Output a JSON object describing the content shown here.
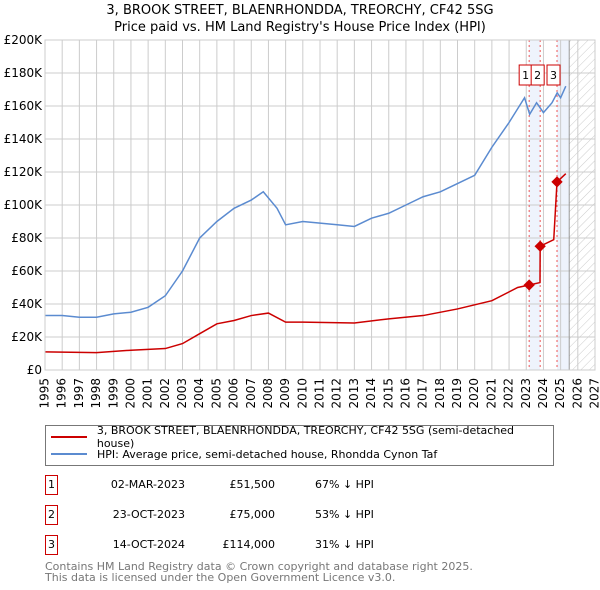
{
  "chart_data": {
    "type": "line",
    "title": "3, BROOK STREET, BLAENRHONDDA, TREORCHY, CF42 5SG",
    "subtitle": "Price paid vs. HM Land Registry's House Price Index (HPI)",
    "xlim": [
      1995,
      2027
    ],
    "ylim": [
      0,
      200000
    ],
    "x_ticks": [
      "1995",
      "1996",
      "1997",
      "1998",
      "1999",
      "2000",
      "2001",
      "2002",
      "2003",
      "2004",
      "2005",
      "2006",
      "2007",
      "2008",
      "2009",
      "2010",
      "2011",
      "2012",
      "2013",
      "2014",
      "2015",
      "2016",
      "2017",
      "2018",
      "2019",
      "2020",
      "2021",
      "2022",
      "2023",
      "2024",
      "2025",
      "2026",
      "2027"
    ],
    "y_ticks": [
      {
        "v": 0,
        "label": "£0"
      },
      {
        "v": 20000,
        "label": "£20K"
      },
      {
        "v": 40000,
        "label": "£40K"
      },
      {
        "v": 60000,
        "label": "£60K"
      },
      {
        "v": 80000,
        "label": "£80K"
      },
      {
        "v": 100000,
        "label": "£100K"
      },
      {
        "v": 120000,
        "label": "£120K"
      },
      {
        "v": 140000,
        "label": "£140K"
      },
      {
        "v": 160000,
        "label": "£160K"
      },
      {
        "v": 180000,
        "label": "£180K"
      },
      {
        "v": 200000,
        "label": "£200K"
      }
    ],
    "grid": true,
    "forecast_start": 2025.5,
    "series": [
      {
        "name": "3, BROOK STREET, BLAENRHONDDA, TREORCHY, CF42 5SG (semi-detached house)",
        "color": "#cc0000",
        "points": [
          [
            1995,
            11000
          ],
          [
            1998,
            10500
          ],
          [
            2000,
            12000
          ],
          [
            2002,
            13000
          ],
          [
            2003,
            16000
          ],
          [
            2004,
            22000
          ],
          [
            2005,
            28000
          ],
          [
            2006,
            30000
          ],
          [
            2007,
            33000
          ],
          [
            2008,
            34500
          ],
          [
            2009,
            29000
          ],
          [
            2010,
            29000
          ],
          [
            2013,
            28500
          ],
          [
            2015,
            31000
          ],
          [
            2017,
            33000
          ],
          [
            2019,
            37000
          ],
          [
            2021,
            42000
          ],
          [
            2022.5,
            50000
          ],
          [
            2023.17,
            51500
          ],
          [
            2023.8,
            53000
          ],
          [
            2023.81,
            75000
          ],
          [
            2024.6,
            79000
          ],
          [
            2024.79,
            114000
          ],
          [
            2025.3,
            119000
          ]
        ]
      },
      {
        "name": "HPI: Average price, semi-detached house, Rhondda Cynon Taf",
        "color": "#5b8bd0",
        "points": [
          [
            1995,
            33000
          ],
          [
            1996,
            33000
          ],
          [
            1997,
            32000
          ],
          [
            1998,
            32000
          ],
          [
            1999,
            34000
          ],
          [
            2000,
            35000
          ],
          [
            2001,
            38000
          ],
          [
            2002,
            45000
          ],
          [
            2003,
            60000
          ],
          [
            2004,
            80000
          ],
          [
            2005,
            90000
          ],
          [
            2006,
            98000
          ],
          [
            2007,
            103000
          ],
          [
            2007.7,
            108000
          ],
          [
            2008.5,
            98000
          ],
          [
            2009,
            88000
          ],
          [
            2010,
            90000
          ],
          [
            2011,
            89000
          ],
          [
            2012,
            88000
          ],
          [
            2013,
            87000
          ],
          [
            2014,
            92000
          ],
          [
            2015,
            95000
          ],
          [
            2016,
            100000
          ],
          [
            2017,
            105000
          ],
          [
            2018,
            108000
          ],
          [
            2019,
            113000
          ],
          [
            2020,
            118000
          ],
          [
            2021,
            135000
          ],
          [
            2022,
            150000
          ],
          [
            2022.9,
            165000
          ],
          [
            2023.2,
            155000
          ],
          [
            2023.6,
            162000
          ],
          [
            2024,
            156000
          ],
          [
            2024.5,
            162000
          ],
          [
            2024.8,
            168000
          ],
          [
            2025,
            165000
          ],
          [
            2025.3,
            172000
          ]
        ]
      }
    ],
    "sales": [
      {
        "label": "1",
        "x": 2023.17,
        "price": 51500,
        "date": "02-MAR-2023",
        "price_text": "£51,500",
        "hpi": "67% ↓ HPI"
      },
      {
        "label": "2",
        "x": 2023.81,
        "price": 75000,
        "date": "23-OCT-2023",
        "price_text": "£75,000",
        "hpi": "53% ↓ HPI"
      },
      {
        "label": "3",
        "x": 2024.79,
        "price": 114000,
        "date": "14-OCT-2024",
        "price_text": "£114,000",
        "hpi": "31% ↓ HPI"
      }
    ]
  },
  "legend": {
    "red": "3, BROOK STREET, BLAENRHONDDA, TREORCHY, CF42 5SG (semi-detached house)",
    "blue": "HPI: Average price, semi-detached house, Rhondda Cynon Taf"
  },
  "footer": {
    "line1": "Contains HM Land Registry data © Crown copyright and database right 2025.",
    "line2": "This data is licensed under the Open Government Licence v3.0."
  }
}
